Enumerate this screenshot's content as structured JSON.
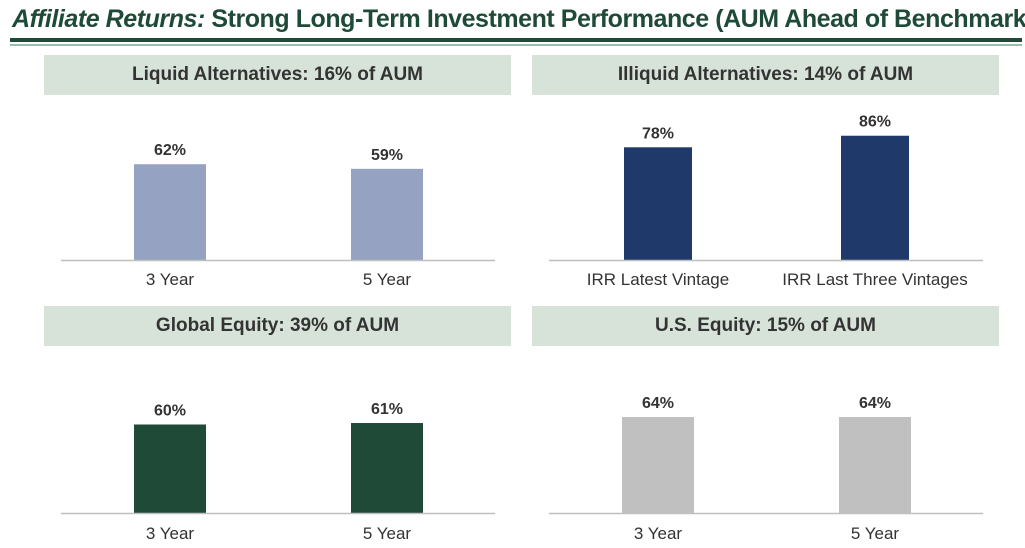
{
  "title": {
    "lead": "Affiliate Returns:",
    "rest": " Strong Long-Term Investment Performance (AUM Ahead of Benchmark)"
  },
  "colors": {
    "title": "#1f4a38",
    "header_bg": "#d7e3d9",
    "header_text": "#333333",
    "axis": "#bfbfbf",
    "label_text": "#333333"
  },
  "chart_data": [
    {
      "type": "bar",
      "title": "Liquid Alternatives: 16% of AUM",
      "categories": [
        "3 Year",
        "5 Year"
      ],
      "values": [
        62,
        59
      ],
      "value_labels": [
        "62%",
        "59%"
      ],
      "ylim": [
        0,
        100
      ],
      "color": "#96a2c1"
    },
    {
      "type": "bar",
      "title": "Illiquid Alternatives: 14% of AUM",
      "categories": [
        "IRR Latest Vintage",
        "IRR Last Three Vintages"
      ],
      "values": [
        78,
        86
      ],
      "value_labels": [
        "78%",
        "86%"
      ],
      "ylim": [
        0,
        100
      ],
      "color": "#1f3a6a"
    },
    {
      "type": "bar",
      "title": "Global Equity: 39% of AUM",
      "categories": [
        "3 Year",
        "5 Year"
      ],
      "values": [
        60,
        61
      ],
      "value_labels": [
        "60%",
        "61%"
      ],
      "ylim": [
        0,
        100
      ],
      "color": "#1f4a38"
    },
    {
      "type": "bar",
      "title": "U.S. Equity: 15% of AUM",
      "categories": [
        "3 Year",
        "5 Year"
      ],
      "values": [
        64,
        64
      ],
      "value_labels": [
        "64%",
        "64%"
      ],
      "ylim": [
        0,
        100
      ],
      "color": "#c0c0c0"
    }
  ]
}
